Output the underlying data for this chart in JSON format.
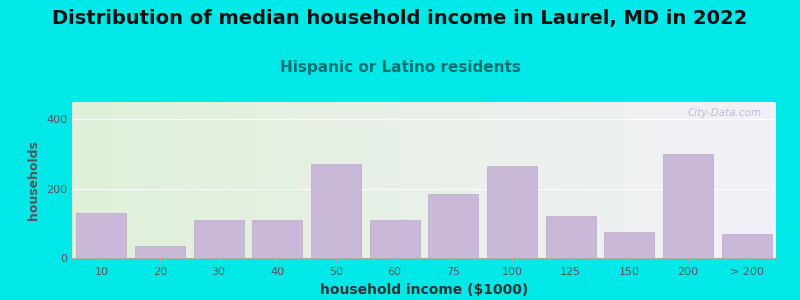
{
  "title": "Distribution of median household income in Laurel, MD in 2022",
  "subtitle": "Hispanic or Latino residents",
  "xlabel": "household income ($1000)",
  "ylabel": "households",
  "categories": [
    "10",
    "20",
    "30",
    "40",
    "50",
    "60",
    "75",
    "100",
    "125",
    "150",
    "200",
    "> 200"
  ],
  "values": [
    130,
    35,
    110,
    110,
    270,
    110,
    185,
    265,
    120,
    75,
    300,
    70
  ],
  "bar_color": "#c9b8d8",
  "bar_edge_color": "#b8a8cc",
  "background_outer": "#00e8e8",
  "plot_bg_left": "#dff0d8",
  "plot_bg_right": "#f2f0f8",
  "yticks": [
    0,
    200,
    400
  ],
  "ylim": [
    0,
    450
  ],
  "title_fontsize": 14,
  "subtitle_fontsize": 11,
  "subtitle_color": "#007070",
  "watermark": "City-Data.com",
  "watermark_color": "#aaaacc",
  "ylabel_color": "#555555",
  "xlabel_color": "#333333",
  "tick_color": "#555555",
  "grid_color": "#ffffff",
  "title_color": "#111111"
}
